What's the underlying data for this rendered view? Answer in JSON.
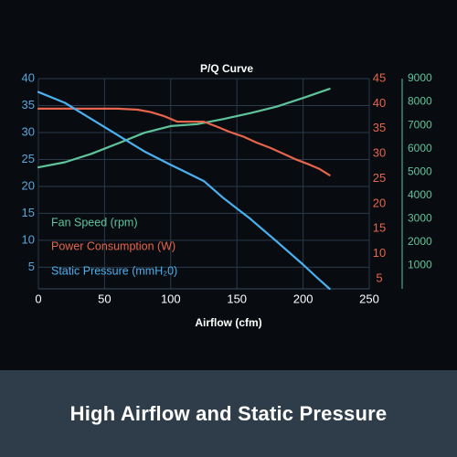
{
  "chart_data": {
    "type": "line",
    "title": "P/Q Curve",
    "xlabel": "Airflow (cfm)",
    "xlim": [
      0,
      250
    ],
    "x_ticks": [
      "0",
      "50",
      "100",
      "150",
      "200",
      "250"
    ],
    "axes": {
      "left": {
        "ylim": [
          1,
          40
        ],
        "ticks": [
          "5",
          "10",
          "15",
          "20",
          "25",
          "30",
          "35",
          "40"
        ],
        "color": "#5aa6dc"
      },
      "right_inner": {
        "ylim": [
          3,
          45
        ],
        "ticks": [
          "5",
          "10",
          "15",
          "20",
          "25",
          "30",
          "35",
          "40",
          "45"
        ],
        "color": "#e6654c"
      },
      "right_outer": {
        "ylim": [
          0,
          9000
        ],
        "ticks": [
          "1000",
          "2000",
          "3000",
          "4000",
          "5000",
          "6000",
          "7000",
          "8000",
          "9000"
        ],
        "color": "#5fc49b"
      }
    },
    "grid": true,
    "legend_position": "left-bottom",
    "series": [
      {
        "name": "Fan Speed (rpm)",
        "axis": "right_outer",
        "color": "#5fc49b",
        "x": [
          0,
          20,
          40,
          60,
          80,
          100,
          120,
          140,
          160,
          180,
          200,
          220
        ],
        "y": [
          5200,
          5420,
          5780,
          6220,
          6680,
          6970,
          7050,
          7270,
          7520,
          7800,
          8170,
          8560
        ]
      },
      {
        "name": "Power Consumption (W)",
        "axis": "right_inner",
        "color": "#e6654c",
        "x": [
          0,
          20,
          40,
          60,
          75,
          85,
          95,
          105,
          115,
          125,
          135,
          145,
          155,
          165,
          175,
          185,
          195,
          205,
          212,
          220
        ],
        "y": [
          39,
          39,
          39,
          39,
          38.8,
          38.3,
          37.5,
          36.4,
          36.4,
          36.4,
          35.4,
          34.3,
          33.4,
          32.2,
          31.2,
          30.0,
          28.8,
          27.8,
          27.0,
          25.7
        ]
      },
      {
        "name": "Static Pressure (mmH₂0)",
        "axis": "left",
        "color": "#4ab0ef",
        "x": [
          0,
          20,
          40,
          60,
          80,
          100,
          110,
          125,
          140,
          160,
          180,
          200,
          210,
          220
        ],
        "y": [
          37.5,
          35.5,
          32.5,
          29.5,
          26.5,
          24.0,
          22.8,
          21.0,
          17.8,
          14.0,
          9.8,
          5.5,
          3.2,
          1.0
        ]
      }
    ]
  },
  "banner": {
    "text": "High Airflow and Static Pressure"
  }
}
